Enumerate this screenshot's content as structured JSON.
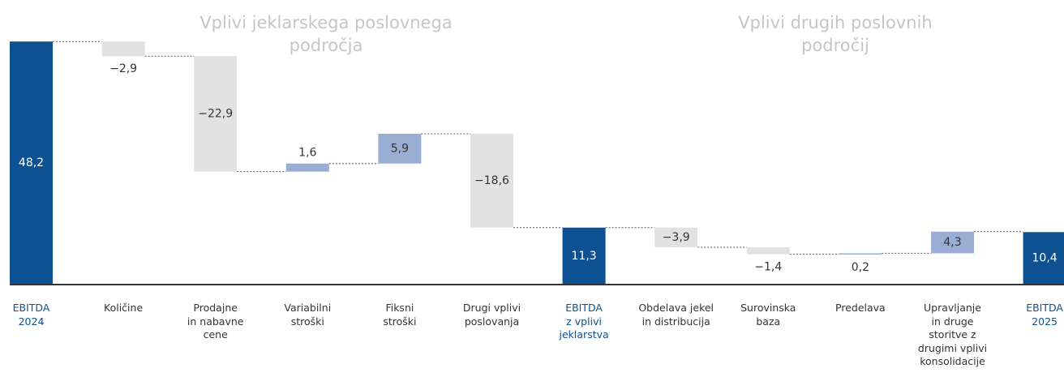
{
  "chart_data": {
    "type": "waterfall",
    "headers": [
      "Vplivi jeklarskega poslovnega\npodročja",
      "Vplivi drugih poslovnih\npodročij"
    ],
    "categories": [
      "EBITDA\n2024",
      "Količine",
      "Prodajne\nin nabavne\ncene",
      "Variabilni\nstroški",
      "Fiksni\nstroški",
      "Drugi vplivi\nposlovanja",
      "EBITDA\nz vplivi\njeklarstva",
      "Obdelava jekel\nin distribucija",
      "Surovinska\nbaza",
      "Predelava",
      "Upravljanje\nin druge\nstoritve z\ndrugimi vplivi\nkonsolidacije",
      "EBITDA\n2025"
    ],
    "values": [
      48.2,
      -2.9,
      -22.9,
      1.6,
      5.9,
      -18.6,
      11.3,
      -3.9,
      -1.4,
      0.2,
      4.3,
      10.4
    ],
    "value_labels": [
      "48,2",
      "−2,9",
      "−22,9",
      "1,6",
      "5,9",
      "−18,6",
      "11,3",
      "−3,9",
      "−1,4",
      "0,2",
      "4,3",
      "10,4"
    ],
    "measures": [
      "total",
      "relative",
      "relative",
      "relative",
      "relative",
      "relative",
      "total",
      "relative",
      "relative",
      "relative",
      "relative",
      "total"
    ],
    "colors": {
      "total": "#0d5192",
      "increase": "#9aaed3",
      "decrease": "#e2e2e2"
    },
    "ylim": [
      0,
      50
    ]
  }
}
